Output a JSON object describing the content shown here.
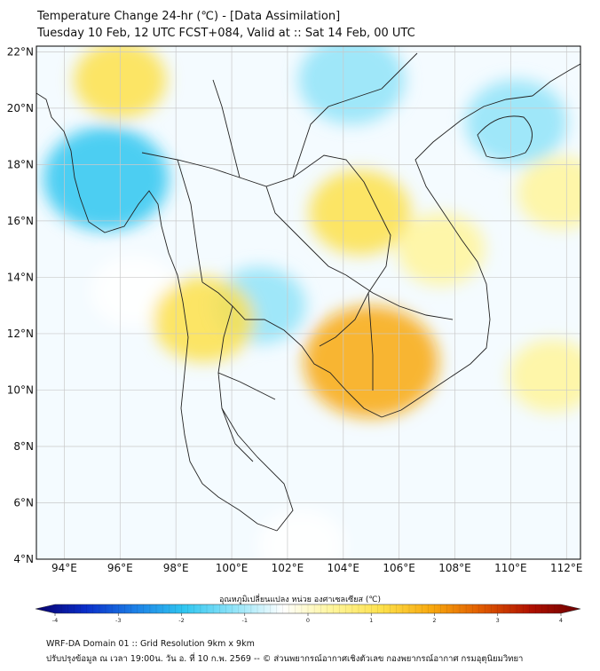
{
  "header": {
    "title_line1": "Temperature Change 24-hr (℃) - [Data Assimilation]",
    "title_line2": "Tuesday 10 Feb, 12 UTC FCST+084, Valid at :: Sat 14 Feb, 00 UTC"
  },
  "map": {
    "lat_ticks": [
      "22°N",
      "20°N",
      "18°N",
      "16°N",
      "14°N",
      "12°N",
      "10°N",
      "8°N",
      "6°N",
      "4°N"
    ],
    "lon_ticks": [
      "94°E",
      "96°E",
      "98°E",
      "100°E",
      "102°E",
      "104°E",
      "106°E",
      "108°E",
      "110°E",
      "112°E"
    ],
    "lat_range": [
      4,
      22.2
    ],
    "lon_range": [
      93,
      112.5
    ],
    "grid": true,
    "field_anomalies": [
      {
        "lon": 95.5,
        "lat": 17.5,
        "value": -1.4
      },
      {
        "lon": 104.3,
        "lat": 21.0,
        "value": -1.0
      },
      {
        "lon": 110.2,
        "lat": 19.5,
        "value": -0.9
      },
      {
        "lon": 101.0,
        "lat": 13.0,
        "value": -0.7
      },
      {
        "lon": 96.5,
        "lat": 13.5,
        "value": -0.6
      },
      {
        "lon": 102.5,
        "lat": 4.5,
        "value": -0.6
      },
      {
        "lon": 105.0,
        "lat": 11.0,
        "value": 1.6
      },
      {
        "lon": 104.6,
        "lat": 16.3,
        "value": 0.9
      },
      {
        "lon": 99.0,
        "lat": 12.5,
        "value": 0.9
      },
      {
        "lon": 96.0,
        "lat": 21.0,
        "value": 0.7
      },
      {
        "lon": 111.5,
        "lat": 10.5,
        "value": 0.6
      },
      {
        "lon": 111.8,
        "lat": 17.0,
        "value": 0.6
      },
      {
        "lon": 107.5,
        "lat": 15.0,
        "value": 0.6
      }
    ]
  },
  "colorbar": {
    "label": "อุณหภูมิเปลี่ยนแปลง หน่วย องศาเซลเซียส (℃)",
    "ticks": [
      "-4",
      "-3",
      "-2",
      "-1",
      "0",
      "1",
      "2",
      "3",
      "4"
    ],
    "min": -4,
    "max": 4,
    "colors": [
      "#08006b",
      "#0a2dc9",
      "#1c7fe6",
      "#30c6f0",
      "#8fe3f8",
      "#ffffff",
      "#fff59a",
      "#fde04a",
      "#f8a80e",
      "#e05a00",
      "#b01000",
      "#6b0000"
    ]
  },
  "footer": {
    "line1": "WRF-DA Domain 01 :: Grid Resolution 9km x 9km",
    "line2": "ปรับปรุงข้อมูล ณ เวลา 19:00น. วัน อ. ที่ 10 ก.พ. 2569 -- © ส่วนพยากรณ์อากาศเชิงตัวเลข กองพยากรณ์อากาศ กรมอุตุนิยมวิทยา"
  }
}
